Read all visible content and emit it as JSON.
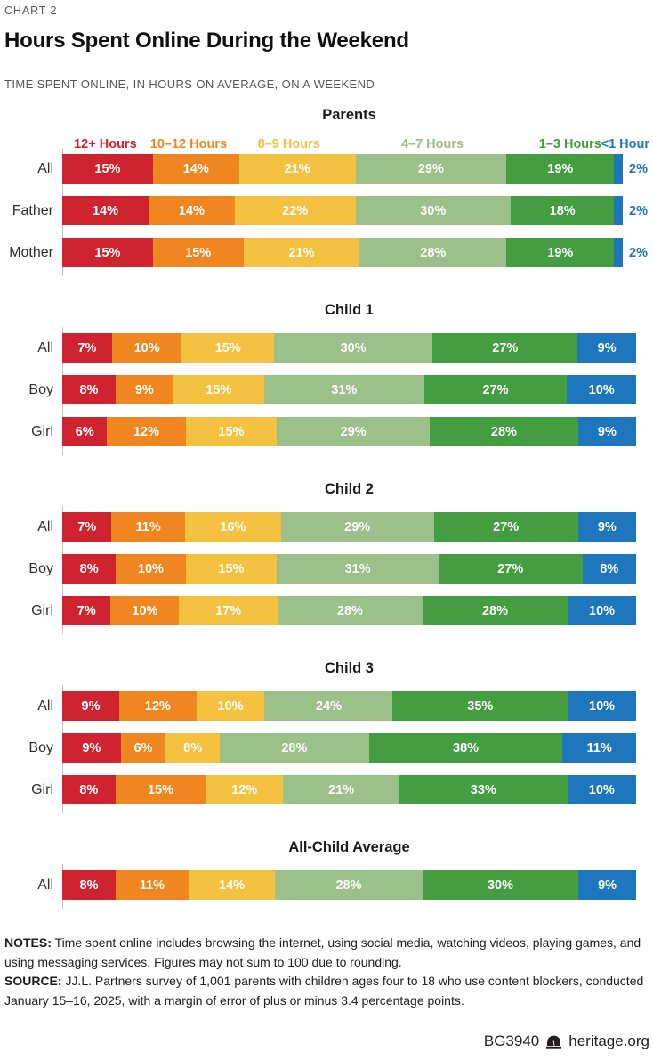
{
  "header": {
    "eyebrow": "CHART 2"
  },
  "chart_data": {
    "type": "bar",
    "stacked": true,
    "orientation": "horizontal",
    "unit": "percent",
    "title": "Hours Spent Online During the Weekend",
    "subtitle": "TIME SPENT ONLINE, IN HOURS ON AVERAGE, ON A WEEKEND",
    "categories": [
      "12+ Hours",
      "10–12 Hours",
      "8–9 Hours",
      "4–7 Hours",
      "1–3 Hours",
      "<1 Hour"
    ],
    "groups": [
      {
        "title": "Parents",
        "last_label_outside": true,
        "rows": [
          {
            "label": "All",
            "values": [
              15,
              14,
              21,
              29,
              19,
              2
            ],
            "labels": [
              "15%",
              "14%",
              "21%",
              "29%",
              "19%",
              "2%"
            ]
          },
          {
            "label": "Father",
            "values": [
              14,
              14,
              22,
              30,
              18,
              2
            ],
            "labels": [
              "14%",
              "14%",
              "22%",
              "30%",
              "18%",
              "2%"
            ]
          },
          {
            "label": "Mother",
            "values": [
              15,
              15,
              21,
              28,
              19,
              2
            ],
            "labels": [
              "15%",
              "15%",
              "21%",
              "28%",
              "19%",
              "2%"
            ]
          }
        ]
      },
      {
        "title": "Child 1",
        "rows": [
          {
            "label": "All",
            "values": [
              7,
              10,
              15,
              30,
              27,
              9
            ],
            "labels": [
              "7%",
              "10%",
              "15%",
              "30%",
              "27%",
              "9%"
            ]
          },
          {
            "label": "Boy",
            "values": [
              8,
              9,
              15,
              31,
              27,
              10
            ],
            "labels": [
              "8%",
              "9%",
              "15%",
              "31%",
              "27%",
              "10%"
            ]
          },
          {
            "label": "Girl",
            "values": [
              6,
              12,
              15,
              29,
              28,
              9
            ],
            "labels": [
              "6%",
              "12%",
              "15%",
              "29%",
              "28%",
              "9%"
            ]
          }
        ]
      },
      {
        "title": "Child 2",
        "rows": [
          {
            "label": "All",
            "values": [
              7,
              11,
              16,
              29,
              27,
              9
            ],
            "labels": [
              "7%",
              "11%",
              "16%",
              "29%",
              "27%",
              "9%"
            ]
          },
          {
            "label": "Boy",
            "values": [
              8,
              10,
              15,
              31,
              27,
              8
            ],
            "labels": [
              "8%",
              "10%",
              "15%",
              "31%",
              "27%",
              "8%"
            ]
          },
          {
            "label": "Girl",
            "values": [
              7,
              10,
              17,
              28,
              28,
              10
            ],
            "labels": [
              "7%",
              "10%",
              "17%",
              "28%",
              "28%",
              "10%"
            ]
          }
        ]
      },
      {
        "title": "Child 3",
        "rows": [
          {
            "label": "All",
            "values": [
              9,
              12,
              10,
              24,
              35,
              10
            ],
            "labels": [
              "9%",
              "12%",
              "10%",
              "24%",
              "35%",
              "10%"
            ]
          },
          {
            "label": "Boy",
            "values": [
              9,
              6,
              8,
              28,
              38,
              11
            ],
            "labels": [
              "9%",
              "6%",
              "8%",
              "28%",
              "38%",
              "11%"
            ]
          },
          {
            "label": "Girl",
            "values": [
              8,
              15,
              12,
              21,
              33,
              10
            ],
            "labels": [
              "8%",
              "15%",
              "12%",
              "21%",
              "33%",
              "10%"
            ]
          }
        ]
      },
      {
        "title": "All-Child Average",
        "rows": [
          {
            "label": "All",
            "values": [
              8,
              11,
              14,
              28,
              30,
              9
            ],
            "labels": [
              "8%",
              "11%",
              "14%",
              "28%",
              "30%",
              "9%"
            ]
          }
        ]
      }
    ]
  },
  "legend": [
    {
      "label": "12+ Hours",
      "color": "#cf2430"
    },
    {
      "label": "10–12 Hours",
      "color": "#f0861f"
    },
    {
      "label": "8–9 Hours",
      "color": "#f5c141"
    },
    {
      "label": "4–7 Hours",
      "color": "#9bc08a"
    },
    {
      "label": "1–3 Hours",
      "color": "#449d41"
    },
    {
      "label": "<1 Hour",
      "color": "#1e76bc"
    }
  ],
  "notes": {
    "notes_label": "NOTES:",
    "notes_text": "Time spent online includes browsing the internet, using social media, watching videos, playing games, and using messaging services. Figures may not sum to 100 due to rounding.",
    "source_label": "SOURCE:",
    "source_text": "JJ.L. Partners survey of 1,001 parents with children ages four to 18 who use content blockers, conducted January 15–16, 2025, with a margin of error of plus or minus 3.4 percentage points."
  },
  "footer": {
    "report_id": "BG3940",
    "site": "heritage.org"
  },
  "colors": {
    "axis_line": "#c6c7c8",
    "text_muted": "#55565a",
    "text_dark": "#1d1d1f",
    "footer_text": "#231f20"
  }
}
